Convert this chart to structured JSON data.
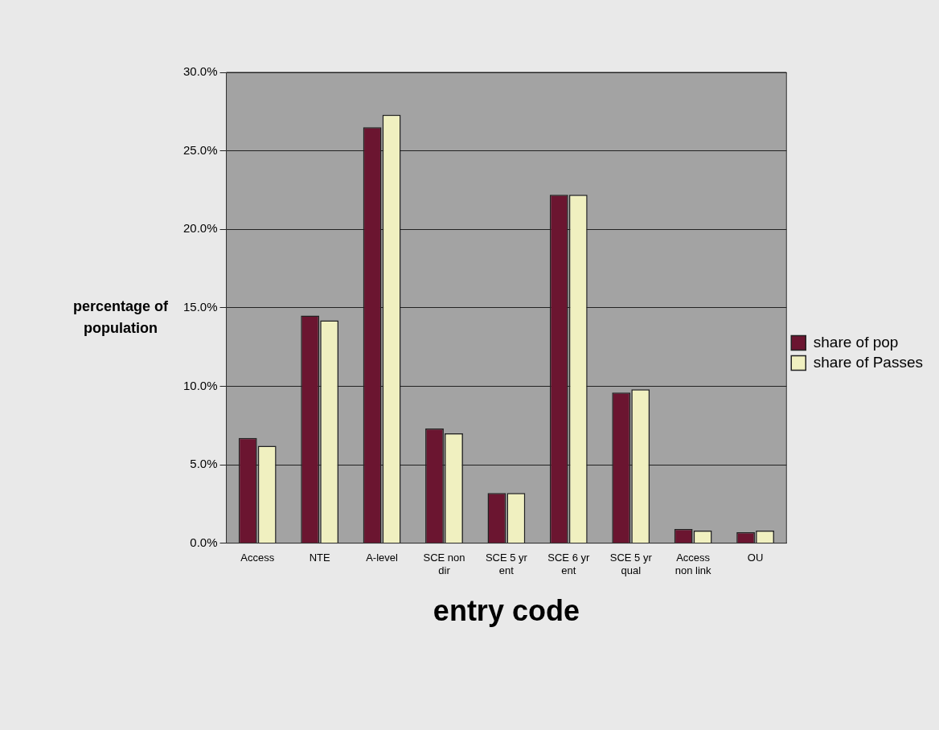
{
  "chart_data": {
    "type": "bar",
    "xlabel": "entry code",
    "ylabel": "percentage of population",
    "categories": [
      "Access",
      "NTE",
      "A-level",
      "SCE non dir",
      "SCE 5 yr ent",
      "SCE 6 yr ent",
      "SCE 5 yr qual",
      "Access non link",
      "OU"
    ],
    "series": [
      {
        "name": "share of pop",
        "color": "#6b1530",
        "values": [
          6.7,
          14.5,
          26.5,
          7.3,
          3.2,
          22.2,
          9.6,
          0.9,
          0.7
        ]
      },
      {
        "name": "share of Passes",
        "color": "#f0f0c0",
        "values": [
          6.2,
          14.2,
          27.3,
          7.0,
          3.2,
          22.2,
          9.8,
          0.8,
          0.8
        ]
      }
    ],
    "ylim": [
      0,
      30
    ],
    "yticks": [
      {
        "value": 0,
        "label": "0.0%"
      },
      {
        "value": 5,
        "label": "5.0%"
      },
      {
        "value": 10,
        "label": "10.0%"
      },
      {
        "value": 15,
        "label": "15.0%"
      },
      {
        "value": 20,
        "label": "20.0%"
      },
      {
        "value": 25,
        "label": "25.0%"
      },
      {
        "value": 30,
        "label": "30.0%"
      }
    ],
    "grid": "y",
    "legend": "right"
  }
}
